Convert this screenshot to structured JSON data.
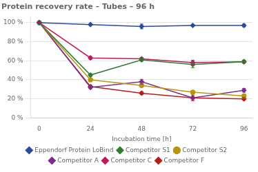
{
  "chart_data": {
    "type": "line",
    "title": "Protein recovery rate – Tubes – 96 h",
    "x_label": "Incubation time [h]",
    "x": [
      0,
      24,
      48,
      72,
      96
    ],
    "series": [
      {
        "name": "Eppendorf Protein LoBind",
        "color": "#2B4B9B",
        "marker": "diamond",
        "values": [
          100,
          98,
          96,
          97,
          97
        ],
        "errors": [
          0,
          0.5,
          2.5,
          1.0,
          1.5
        ]
      },
      {
        "name": "Competitor S1",
        "color": "#2E7D32",
        "marker": "diamond",
        "values": [
          100,
          45,
          61,
          56,
          59
        ],
        "errors": [
          0,
          1.5,
          1.5,
          3.5,
          1.5
        ]
      },
      {
        "name": "Competitor S2",
        "color": "#B8960C",
        "marker": "circle",
        "values": [
          100,
          40,
          34,
          27,
          23
        ],
        "errors": [
          0,
          1.5,
          1.5,
          1.5,
          1.5
        ]
      },
      {
        "name": "Competitor A",
        "color": "#7B2D8B",
        "marker": "diamond",
        "values": [
          100,
          32,
          38,
          21,
          29
        ],
        "errors": [
          0,
          1.5,
          2.5,
          3.0,
          2.0
        ]
      },
      {
        "name": "Competitor C",
        "color": "#C2185B",
        "marker": "diamond",
        "values": [
          100,
          63,
          62,
          58,
          59
        ],
        "errors": [
          0,
          1.5,
          1.5,
          2.5,
          1.5
        ]
      },
      {
        "name": "Competitor F",
        "color": "#B71C1C",
        "marker": "diamond",
        "values": [
          100,
          33,
          26,
          21,
          20
        ],
        "errors": [
          0,
          1.5,
          1.5,
          1.5,
          1.5
        ]
      }
    ],
    "xlim": [
      -4,
      100
    ],
    "xticks": [
      0,
      24,
      48,
      72,
      96
    ],
    "ylim": [
      0,
      107
    ],
    "yticks": [
      {
        "value": 0,
        "label": "0 %"
      },
      {
        "value": 20,
        "label": "20 %"
      },
      {
        "value": 40,
        "label": "40 %"
      },
      {
        "value": 60,
        "label": "60 %"
      },
      {
        "value": 80,
        "label": "80 %"
      },
      {
        "value": 100,
        "label": "100 %"
      }
    ],
    "grid": "y",
    "legend": "bottom"
  }
}
